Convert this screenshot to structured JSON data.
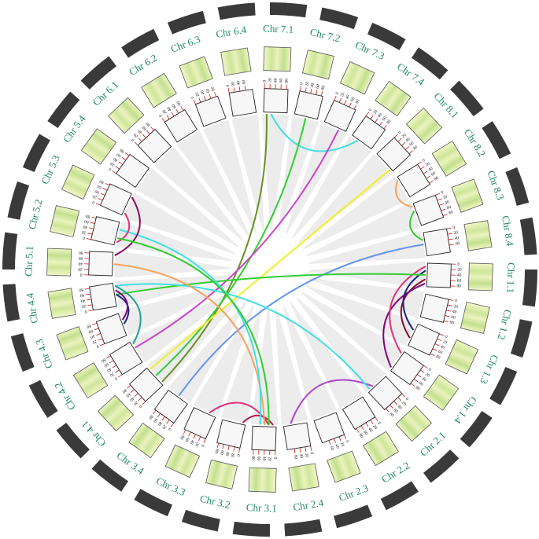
{
  "chart_data": {
    "type": "circos",
    "segments": [
      {
        "name": "Chr 7.1",
        "ticks": [
          0,
          20,
          40,
          60,
          80
        ]
      },
      {
        "name": "Chr 7.2",
        "ticks": [
          0,
          20,
          40,
          60,
          80
        ]
      },
      {
        "name": "Chr 7.3",
        "ticks": [
          0,
          20,
          40,
          60,
          80
        ]
      },
      {
        "name": "Chr 7.4",
        "ticks": [
          0,
          20,
          40,
          60,
          80
        ]
      },
      {
        "name": "Chr 8.1",
        "ticks": [
          0,
          20,
          40,
          60,
          80
        ]
      },
      {
        "name": "Chr 8.2",
        "ticks": [
          0,
          20,
          40,
          60,
          80
        ]
      },
      {
        "name": "Chr 8.3",
        "ticks": [
          0,
          20,
          40,
          60,
          80
        ]
      },
      {
        "name": "Chr 8.4",
        "ticks": [
          0,
          20,
          40,
          60
        ]
      },
      {
        "name": "Chr 1.1",
        "ticks": [
          0,
          20,
          40,
          60,
          80
        ]
      },
      {
        "name": "Chr 1.2",
        "ticks": [
          0,
          20,
          40,
          60,
          80
        ]
      },
      {
        "name": "Chr 1.3",
        "ticks": [
          0,
          20,
          40,
          60,
          80
        ]
      },
      {
        "name": "Chr 1.4",
        "ticks": [
          0,
          20,
          40,
          60,
          80
        ]
      },
      {
        "name": "Chr 2.1",
        "ticks": [
          0,
          20,
          40,
          60,
          80
        ]
      },
      {
        "name": "Chr 2.2",
        "ticks": [
          0,
          20,
          40,
          60,
          80
        ]
      },
      {
        "name": "Chr 2.3",
        "ticks": [
          0,
          20,
          40,
          60
        ]
      },
      {
        "name": "Chr 2.4",
        "ticks": [
          0,
          20,
          40,
          60
        ]
      },
      {
        "name": "Chr 3.1",
        "ticks": [
          0,
          20,
          40,
          60,
          80
        ]
      },
      {
        "name": "Chr 3.2",
        "ticks": [
          0,
          20,
          40,
          60,
          80
        ]
      },
      {
        "name": "Chr 3.3",
        "ticks": [
          0,
          20,
          40,
          60,
          80
        ]
      },
      {
        "name": "Chr 3.4",
        "ticks": [
          0,
          20,
          40,
          60,
          80
        ]
      },
      {
        "name": "Chr 4.1",
        "ticks": [
          0,
          20,
          40,
          60,
          80
        ]
      },
      {
        "name": "Chr 4.2",
        "ticks": [
          0,
          20,
          40,
          60,
          80
        ]
      },
      {
        "name": "Chr 4.3",
        "ticks": [
          0,
          20,
          40,
          60,
          80
        ]
      },
      {
        "name": "Chr 4.4",
        "ticks": [
          0,
          20,
          40,
          60,
          80
        ]
      },
      {
        "name": "Chr 5.1",
        "ticks": [
          0,
          20,
          40,
          60,
          80
        ]
      },
      {
        "name": "Chr 5.2",
        "ticks": [
          0,
          20,
          40,
          60,
          80
        ]
      },
      {
        "name": "Chr 5.3",
        "ticks": [
          0,
          20,
          40,
          60,
          80
        ]
      },
      {
        "name": "Chr 5.4",
        "ticks": [
          0,
          20,
          40,
          60,
          80
        ]
      },
      {
        "name": "Chr 6.1",
        "ticks": [
          0,
          20,
          40,
          60,
          80
        ]
      },
      {
        "name": "Chr 6.2",
        "ticks": [
          0,
          20,
          40,
          60,
          80
        ]
      },
      {
        "name": "Chr 6.3",
        "ticks": [
          0,
          20,
          40,
          60,
          80
        ]
      },
      {
        "name": "Chr 6.4",
        "ticks": [
          0,
          20,
          40,
          60
        ]
      }
    ],
    "links": [
      {
        "source": "Chr 7.1",
        "target": "Chr 4.1",
        "color": "#6b8e23"
      },
      {
        "source": "Chr 7.1",
        "target": "Chr 7.4",
        "color": "#40e0e0"
      },
      {
        "source": "Chr 7.2",
        "target": "Chr 4.1",
        "color": "#32cd32"
      },
      {
        "source": "Chr 7.3",
        "target": "Chr 4.2",
        "color": "#cc44cc"
      },
      {
        "source": "Chr 8.1",
        "target": "Chr 4.1",
        "color": "#f0f020"
      },
      {
        "source": "Chr 8.2",
        "target": "Chr 8.3",
        "color": "#f4a460"
      },
      {
        "source": "Chr 8.3",
        "target": "Chr 8.4",
        "color": "#32cd32"
      },
      {
        "source": "Chr 8.4",
        "target": "Chr 3.4",
        "color": "#6495ed"
      },
      {
        "source": "Chr 1.1",
        "target": "Chr 1.3",
        "color": "#8b0a2a"
      },
      {
        "source": "Chr 1.1",
        "target": "Chr 1.4",
        "color": "#800080"
      },
      {
        "source": "Chr 1.1",
        "target": "Chr 1.4",
        "color": "#e0307a"
      },
      {
        "source": "Chr 1.1",
        "target": "Chr 1.3",
        "color": "#1a237e"
      },
      {
        "source": "Chr 1.1",
        "target": "Chr 4.4",
        "color": "#32cd32"
      },
      {
        "source": "Chr 2.1",
        "target": "Chr 2.4",
        "color": "#aa44cc"
      },
      {
        "source": "Chr 2.1",
        "target": "Chr 4.4",
        "color": "#40e0e0"
      },
      {
        "source": "Chr 3.1",
        "target": "Chr 3.2",
        "color": "#c0184a"
      },
      {
        "source": "Chr 3.1",
        "target": "Chr 3.3",
        "color": "#e0307a"
      },
      {
        "source": "Chr 3.1",
        "target": "Chr 5.1",
        "color": "#f4a460"
      },
      {
        "source": "Chr 3.1",
        "target": "Chr 5.2",
        "color": "#40e0e0"
      },
      {
        "source": "Chr 5.3",
        "target": "Chr 5.1",
        "color": "#8b0a5a"
      },
      {
        "source": "Chr 5.3",
        "target": "Chr 5.2",
        "color": "#e0307a"
      },
      {
        "source": "Chr 5.2",
        "target": "Chr 3.1",
        "color": "#32cd32"
      },
      {
        "source": "Chr 4.4",
        "target": "Chr 4.3",
        "color": "#1a237e"
      },
      {
        "source": "Chr 4.4",
        "target": "Chr 4.3",
        "color": "#800080"
      },
      {
        "source": "Chr 4.2",
        "target": "Chr 4.4",
        "color": "#20a090"
      }
    ]
  }
}
